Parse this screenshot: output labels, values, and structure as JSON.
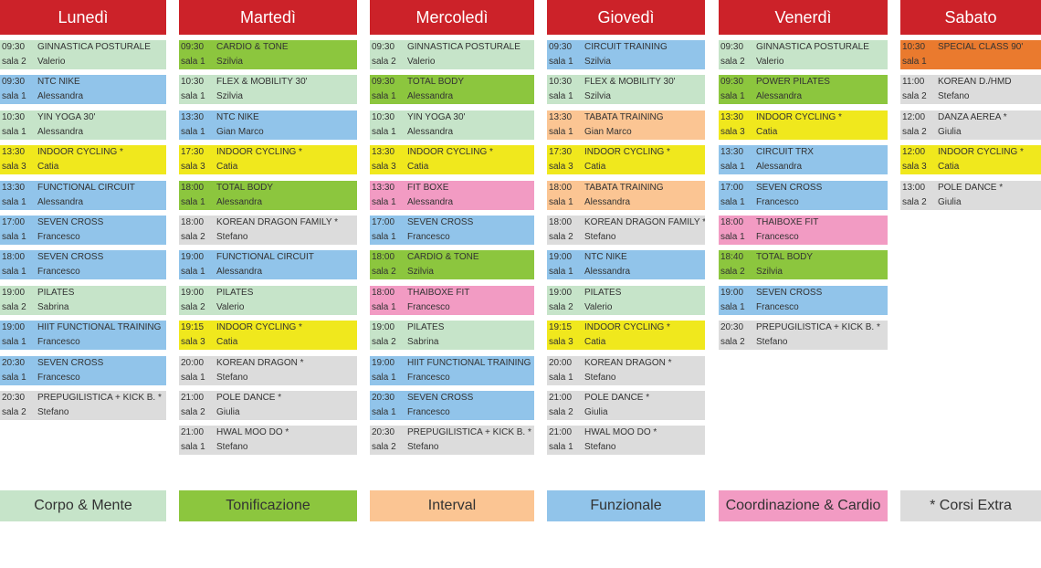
{
  "colors": {
    "header": "#cc2229",
    "corpo": "#c6e4c9",
    "toni": "#8cc63e",
    "interval": "#fbc593",
    "funz": "#91c4ea",
    "coord": "#f29bc3",
    "extra": "#dcdcdc",
    "yellow": "#f0e81d",
    "special": "#ea7a2e"
  },
  "days": [
    {
      "name": "Lunedì",
      "classes": [
        {
          "time": "09:30",
          "name": "GINNASTICA POSTURALE",
          "room": "sala 2",
          "instructor": "Valerio",
          "cat": "corpo"
        },
        {
          "time": "09:30",
          "name": "NTC NIKE",
          "room": "sala 1",
          "instructor": "Alessandra",
          "cat": "funz"
        },
        {
          "time": "10:30",
          "name": "YIN YOGA 30'",
          "room": "sala 1",
          "instructor": "Alessandra",
          "cat": "corpo"
        },
        {
          "time": "13:30",
          "name": "INDOOR CYCLING *",
          "room": "sala 3",
          "instructor": "Catia",
          "cat": "yellow"
        },
        {
          "time": "13:30",
          "name": "FUNCTIONAL CIRCUIT",
          "room": "sala 1",
          "instructor": "Alessandra",
          "cat": "funz"
        },
        {
          "time": "17:00",
          "name": "SEVEN CROSS",
          "room": "sala 1",
          "instructor": "Francesco",
          "cat": "funz"
        },
        {
          "time": "18:00",
          "name": "SEVEN CROSS",
          "room": "sala 1",
          "instructor": "Francesco",
          "cat": "funz"
        },
        {
          "time": "19:00",
          "name": "PILATES",
          "room": "sala 2",
          "instructor": "Sabrina",
          "cat": "corpo"
        },
        {
          "time": "19:00",
          "name": "HIIT FUNCTIONAL TRAINING",
          "room": "sala 1",
          "instructor": "Francesco",
          "cat": "funz"
        },
        {
          "time": "20:30",
          "name": "SEVEN CROSS",
          "room": "sala 1",
          "instructor": "Francesco",
          "cat": "funz"
        },
        {
          "time": "20:30",
          "name": "PREPUGILISTICA + KICK B. *",
          "room": "sala 2",
          "instructor": "Stefano",
          "cat": "extra"
        }
      ]
    },
    {
      "name": "Martedì",
      "classes": [
        {
          "time": "09:30",
          "name": "CARDIO & TONE",
          "room": "sala 1",
          "instructor": "Szilvia",
          "cat": "toni"
        },
        {
          "time": "10:30",
          "name": "FLEX & MOBILITY 30'",
          "room": "sala 1",
          "instructor": "Szilvia",
          "cat": "corpo"
        },
        {
          "time": "13:30",
          "name": "NTC NIKE",
          "room": "sala 1",
          "instructor": "Gian Marco",
          "cat": "funz"
        },
        {
          "time": "17:30",
          "name": "INDOOR CYCLING *",
          "room": "sala 3",
          "instructor": "Catia",
          "cat": "yellow"
        },
        {
          "time": "18:00",
          "name": "TOTAL BODY",
          "room": "sala 1",
          "instructor": "Alessandra",
          "cat": "toni"
        },
        {
          "time": "18:00",
          "name": "KOREAN DRAGON FAMILY *",
          "room": "sala 2",
          "instructor": "Stefano",
          "cat": "extra"
        },
        {
          "time": "19:00",
          "name": "FUNCTIONAL CIRCUIT",
          "room": "sala 1",
          "instructor": "Alessandra",
          "cat": "funz"
        },
        {
          "time": "19:00",
          "name": "PILATES",
          "room": "sala 2",
          "instructor": "Valerio",
          "cat": "corpo"
        },
        {
          "time": "19:15",
          "name": "INDOOR CYCLING *",
          "room": "sala 3",
          "instructor": "Catia",
          "cat": "yellow"
        },
        {
          "time": "20:00",
          "name": "KOREAN DRAGON *",
          "room": "sala 1",
          "instructor": "Stefano",
          "cat": "extra"
        },
        {
          "time": "21:00",
          "name": "POLE DANCE *",
          "room": "sala 2",
          "instructor": "Giulia",
          "cat": "extra"
        },
        {
          "time": "21:00",
          "name": "HWAL MOO DO *",
          "room": "sala 1",
          "instructor": "Stefano",
          "cat": "extra"
        }
      ]
    },
    {
      "name": "Mercoledì",
      "classes": [
        {
          "time": "09:30",
          "name": "GINNASTICA POSTURALE",
          "room": "sala 2",
          "instructor": "Valerio",
          "cat": "corpo"
        },
        {
          "time": "09:30",
          "name": "TOTAL BODY",
          "room": "sala 1",
          "instructor": "Alessandra",
          "cat": "toni"
        },
        {
          "time": "10:30",
          "name": "YIN YOGA 30'",
          "room": "sala 1",
          "instructor": "Alessandra",
          "cat": "corpo"
        },
        {
          "time": "13:30",
          "name": "INDOOR CYCLING *",
          "room": "sala 3",
          "instructor": "Catia",
          "cat": "yellow"
        },
        {
          "time": "13:30",
          "name": "FIT BOXE",
          "room": "sala 1",
          "instructor": "Alessandra",
          "cat": "coord"
        },
        {
          "time": "17:00",
          "name": "SEVEN CROSS",
          "room": "sala 1",
          "instructor": "Francesco",
          "cat": "funz"
        },
        {
          "time": "18:00",
          "name": "CARDIO & TONE",
          "room": "sala 2",
          "instructor": "Szilvia",
          "cat": "toni"
        },
        {
          "time": "18:00",
          "name": "THAIBOXE FIT",
          "room": "sala 1",
          "instructor": "Francesco",
          "cat": "coord"
        },
        {
          "time": "19:00",
          "name": "PILATES",
          "room": "sala 2",
          "instructor": "Sabrina",
          "cat": "corpo"
        },
        {
          "time": "19:00",
          "name": "HIIT FUNCTIONAL TRAINING",
          "room": "sala 1",
          "instructor": "Francesco",
          "cat": "funz"
        },
        {
          "time": "20:30",
          "name": "SEVEN CROSS",
          "room": "sala 1",
          "instructor": "Francesco",
          "cat": "funz"
        },
        {
          "time": "20:30",
          "name": "PREPUGILISTICA + KICK B. *",
          "room": "sala 2",
          "instructor": "Stefano",
          "cat": "extra"
        }
      ]
    },
    {
      "name": "Giovedì",
      "classes": [
        {
          "time": "09:30",
          "name": "CIRCUIT TRAINING",
          "room": "sala 1",
          "instructor": "Szilvia",
          "cat": "funz"
        },
        {
          "time": "10:30",
          "name": "FLEX & MOBILITY 30'",
          "room": "sala 1",
          "instructor": "Szilvia",
          "cat": "corpo"
        },
        {
          "time": "13:30",
          "name": "TABATA TRAINING",
          "room": "sala 1",
          "instructor": "Gian Marco",
          "cat": "interval"
        },
        {
          "time": "17:30",
          "name": "INDOOR CYCLING *",
          "room": "sala 3",
          "instructor": "Catia",
          "cat": "yellow"
        },
        {
          "time": "18:00",
          "name": "TABATA TRAINING",
          "room": "sala 1",
          "instructor": "Alessandra",
          "cat": "interval"
        },
        {
          "time": "18:00",
          "name": "KOREAN DRAGON FAMILY *",
          "room": "sala 2",
          "instructor": "Stefano",
          "cat": "extra"
        },
        {
          "time": "19:00",
          "name": "NTC NIKE",
          "room": "sala 1",
          "instructor": "Alessandra",
          "cat": "funz"
        },
        {
          "time": "19:00",
          "name": "PILATES",
          "room": "sala 2",
          "instructor": "Valerio",
          "cat": "corpo"
        },
        {
          "time": "19:15",
          "name": "INDOOR CYCLING *",
          "room": "sala 3",
          "instructor": "Catia",
          "cat": "yellow"
        },
        {
          "time": "20:00",
          "name": "KOREAN DRAGON *",
          "room": "sala 1",
          "instructor": "Stefano",
          "cat": "extra"
        },
        {
          "time": "21:00",
          "name": "POLE DANCE *",
          "room": "sala 2",
          "instructor": "Giulia",
          "cat": "extra"
        },
        {
          "time": "21:00",
          "name": "HWAL MOO DO *",
          "room": "sala 1",
          "instructor": "Stefano",
          "cat": "extra"
        }
      ]
    },
    {
      "name": "Venerdì",
      "classes": [
        {
          "time": "09:30",
          "name": "GINNASTICA POSTURALE",
          "room": "sala 2",
          "instructor": "Valerio",
          "cat": "corpo"
        },
        {
          "time": "09:30",
          "name": "POWER PILATES",
          "room": "sala 1",
          "instructor": "Alessandra",
          "cat": "toni"
        },
        {
          "time": "13:30",
          "name": "INDOOR CYCLING *",
          "room": "sala 3",
          "instructor": "Catia",
          "cat": "yellow"
        },
        {
          "time": "13:30",
          "name": "CIRCUIT TRX",
          "room": "sala 1",
          "instructor": "Alessandra",
          "cat": "funz"
        },
        {
          "time": "17:00",
          "name": "SEVEN CROSS",
          "room": "sala 1",
          "instructor": "Francesco",
          "cat": "funz"
        },
        {
          "time": "18:00",
          "name": "THAIBOXE FIT",
          "room": "sala 1",
          "instructor": "Francesco",
          "cat": "coord"
        },
        {
          "time": "18:40",
          "name": "TOTAL BODY",
          "room": "sala 2",
          "instructor": "Szilvia",
          "cat": "toni"
        },
        {
          "time": "19:00",
          "name": "SEVEN CROSS",
          "room": "sala 1",
          "instructor": "Francesco",
          "cat": "funz"
        },
        {
          "time": "20:30",
          "name": "PREPUGILISTICA + KICK B. *",
          "room": "sala 2",
          "instructor": "Stefano",
          "cat": "extra"
        }
      ]
    },
    {
      "name": "Sabato",
      "classes": [
        {
          "time": "10:30",
          "name": "SPECIAL CLASS 90'",
          "room": "sala 1",
          "instructor": "",
          "cat": "special"
        },
        {
          "time": "11:00",
          "name": "KOREAN D./HMD",
          "room": "sala 2",
          "instructor": "Stefano",
          "cat": "extra"
        },
        {
          "time": "12:00",
          "name": "DANZA AEREA *",
          "room": "sala 2",
          "instructor": "Giulia",
          "cat": "extra"
        },
        {
          "time": "12:00",
          "name": "INDOOR CYCLING *",
          "room": "sala 3",
          "instructor": "Catia",
          "cat": "yellow"
        },
        {
          "time": "13:00",
          "name": "POLE DANCE *",
          "room": "sala 2",
          "instructor": "Giulia",
          "cat": "extra"
        }
      ]
    }
  ],
  "legend": [
    {
      "label": "Corpo & Mente",
      "cat": "corpo"
    },
    {
      "label": "Tonificazione",
      "cat": "toni"
    },
    {
      "label": "Interval",
      "cat": "interval"
    },
    {
      "label": "Funzionale",
      "cat": "funz"
    },
    {
      "label": "Coordinazione & Cardio",
      "cat": "coord"
    },
    {
      "label": "* Corsi Extra",
      "cat": "extra"
    }
  ]
}
